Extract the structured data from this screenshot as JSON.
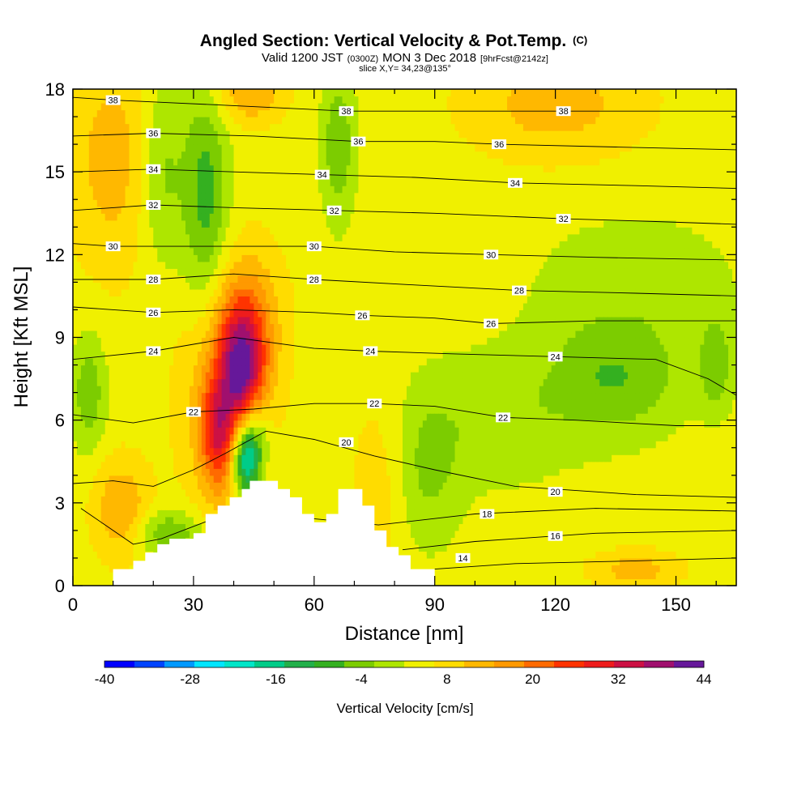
{
  "chart_data": {
    "type": "heatmap",
    "title": "Angled Section: Vertical Velocity & Pot.Temp.",
    "title_tag": "(C)",
    "subtitle_parts": [
      "Valid 1200 JST",
      "(0300Z)",
      "MON 3 Dec 2018",
      "[9hrFcst@2142z]"
    ],
    "slice_text": "slice X,Y= 34,23@135°",
    "xlabel": "Distance [nm]",
    "ylabel": "Height [Kft MSL]",
    "xlim": [
      0,
      165
    ],
    "ylim": [
      0,
      18
    ],
    "x_ticks": [
      0,
      30,
      60,
      90,
      120,
      150
    ],
    "y_ticks": [
      0,
      3,
      6,
      9,
      12,
      15,
      18
    ],
    "colorbar": {
      "label": "Vertical Velocity [cm/s]",
      "min": -40,
      "max": 44,
      "step": 4,
      "tick_labels": [
        -40,
        -28,
        -16,
        -4,
        8,
        20,
        32,
        44
      ],
      "colors": [
        "#0000ff",
        "#0044ff",
        "#0099ff",
        "#00e6ff",
        "#00e6c8",
        "#00cc88",
        "#22b04a",
        "#34b020",
        "#7ccc00",
        "#aee600",
        "#f0f000",
        "#ffdc00",
        "#ffb800",
        "#ff9900",
        "#ff6a00",
        "#ff3300",
        "#ee1c1c",
        "#cc1144",
        "#a0106e",
        "#66189a"
      ]
    },
    "velocity_features": [
      {
        "x": 42,
        "y": 8.0,
        "sx": 4,
        "sy": 1.6,
        "value": 28
      },
      {
        "x": 36,
        "y": 5.5,
        "sx": 3,
        "sy": 1.4,
        "value": 18
      },
      {
        "x": 38,
        "y": 7.0,
        "sx": 8,
        "sy": 3.0,
        "value": 10
      },
      {
        "x": 44,
        "y": 17.9,
        "sx": 6,
        "sy": 0.8,
        "value": 10
      },
      {
        "x": 12,
        "y": 2.8,
        "sx": 5,
        "sy": 1.3,
        "value": 10
      },
      {
        "x": 10,
        "y": 15.5,
        "sx": 8,
        "sy": 3.0,
        "value": 8
      },
      {
        "x": 120,
        "y": 17.5,
        "sx": 16,
        "sy": 1.5,
        "value": 8
      },
      {
        "x": 140,
        "y": 0.6,
        "sx": 8,
        "sy": 0.5,
        "value": 8
      },
      {
        "x": 76,
        "y": 3.5,
        "sx": 5,
        "sy": 2.5,
        "value": 5
      },
      {
        "x": 45,
        "y": 10.0,
        "sx": 6,
        "sy": 1.8,
        "value": 6
      },
      {
        "x": 43,
        "y": 4.5,
        "sx": 2.5,
        "sy": 0.9,
        "value": -24
      },
      {
        "x": 45,
        "y": 5.5,
        "sx": 3,
        "sy": 1.0,
        "value": -12
      },
      {
        "x": 33,
        "y": 14.0,
        "sx": 4,
        "sy": 3.0,
        "value": -12
      },
      {
        "x": 24,
        "y": 1.9,
        "sx": 6,
        "sy": 0.6,
        "value": -10
      },
      {
        "x": 66,
        "y": 16.0,
        "sx": 3,
        "sy": 2.0,
        "value": -9
      },
      {
        "x": 4,
        "y": 7.0,
        "sx": 3,
        "sy": 1.5,
        "value": -9
      },
      {
        "x": 135,
        "y": 7.5,
        "sx": 12,
        "sy": 1.5,
        "value": -9
      },
      {
        "x": 160,
        "y": 8.0,
        "sx": 3,
        "sy": 1.2,
        "value": -8
      },
      {
        "x": 22,
        "y": 15.0,
        "sx": 4,
        "sy": 2.5,
        "value": -8
      },
      {
        "x": 105,
        "y": 6.0,
        "sx": 15,
        "sy": 1.8,
        "value": -5
      },
      {
        "x": 140,
        "y": 11.0,
        "sx": 20,
        "sy": 2.0,
        "value": -4
      },
      {
        "x": 88,
        "y": 4.0,
        "sx": 6,
        "sy": 2.0,
        "value": -6
      }
    ],
    "terrain": [
      [
        0,
        0
      ],
      [
        10,
        0
      ],
      [
        10,
        0.6
      ],
      [
        15,
        0.6
      ],
      [
        15,
        0.9
      ],
      [
        18,
        0.9
      ],
      [
        18,
        1.2
      ],
      [
        21,
        1.2
      ],
      [
        21,
        1.5
      ],
      [
        24,
        1.5
      ],
      [
        24,
        1.7
      ],
      [
        30,
        1.7
      ],
      [
        30,
        1.9
      ],
      [
        33,
        1.9
      ],
      [
        33,
        2.6
      ],
      [
        36,
        2.6
      ],
      [
        36,
        2.9
      ],
      [
        39,
        2.9
      ],
      [
        39,
        3.2
      ],
      [
        42,
        3.2
      ],
      [
        42,
        3.5
      ],
      [
        44,
        3.5
      ],
      [
        44,
        3.8
      ],
      [
        51,
        3.8
      ],
      [
        51,
        3.5
      ],
      [
        54,
        3.5
      ],
      [
        54,
        3.2
      ],
      [
        57,
        3.2
      ],
      [
        57,
        2.6
      ],
      [
        60,
        2.6
      ],
      [
        60,
        2.3
      ],
      [
        63,
        2.3
      ],
      [
        63,
        2.6
      ],
      [
        66,
        2.6
      ],
      [
        66,
        3.5
      ],
      [
        72,
        3.5
      ],
      [
        72,
        2.9
      ],
      [
        75,
        2.9
      ],
      [
        75,
        2.0
      ],
      [
        78,
        2.0
      ],
      [
        78,
        1.4
      ],
      [
        81,
        1.4
      ],
      [
        81,
        1.1
      ],
      [
        84,
        1.1
      ],
      [
        84,
        0.6
      ],
      [
        90,
        0.6
      ],
      [
        90,
        0
      ],
      [
        165,
        0
      ]
    ],
    "theta_contours": [
      {
        "value": 14,
        "label_at": [
          [
            97,
            1.0
          ]
        ],
        "points": [
          [
            90,
            0.6
          ],
          [
            110,
            0.8
          ],
          [
            140,
            0.9
          ],
          [
            165,
            1.0
          ]
        ]
      },
      {
        "value": 16,
        "label_at": [
          [
            120,
            1.8
          ]
        ],
        "points": [
          [
            82,
            1.3
          ],
          [
            100,
            1.6
          ],
          [
            130,
            1.9
          ],
          [
            165,
            2.0
          ]
        ]
      },
      {
        "value": 18,
        "label_at": [
          [
            103,
            2.6
          ]
        ],
        "points": [
          [
            2,
            2.8
          ],
          [
            15,
            1.5
          ],
          [
            22,
            1.7
          ],
          [
            40,
            2.7
          ],
          [
            76,
            2.2
          ],
          [
            100,
            2.6
          ],
          [
            130,
            2.8
          ],
          [
            165,
            2.7
          ]
        ]
      },
      {
        "value": 20,
        "label_at": [
          [
            68,
            5.2
          ],
          [
            120,
            3.4
          ]
        ],
        "points": [
          [
            0,
            3.7
          ],
          [
            10,
            3.8
          ],
          [
            20,
            3.6
          ],
          [
            30,
            4.2
          ],
          [
            38,
            4.8
          ],
          [
            48,
            5.6
          ],
          [
            60,
            5.3
          ],
          [
            75,
            4.7
          ],
          [
            90,
            4.2
          ],
          [
            110,
            3.6
          ],
          [
            140,
            3.3
          ],
          [
            165,
            3.2
          ]
        ]
      },
      {
        "value": 22,
        "label_at": [
          [
            30,
            6.3
          ],
          [
            75,
            6.6
          ],
          [
            107,
            6.1
          ]
        ],
        "points": [
          [
            0,
            6.2
          ],
          [
            15,
            5.9
          ],
          [
            30,
            6.3
          ],
          [
            45,
            6.4
          ],
          [
            60,
            6.6
          ],
          [
            75,
            6.6
          ],
          [
            90,
            6.5
          ],
          [
            107,
            6.1
          ],
          [
            125,
            6.0
          ],
          [
            150,
            5.8
          ],
          [
            165,
            5.8
          ]
        ]
      },
      {
        "value": 24,
        "label_at": [
          [
            20,
            8.5
          ],
          [
            74,
            8.5
          ],
          [
            120,
            8.3
          ]
        ],
        "points": [
          [
            0,
            8.2
          ],
          [
            20,
            8.5
          ],
          [
            40,
            9.0
          ],
          [
            60,
            8.6
          ],
          [
            74,
            8.5
          ],
          [
            95,
            8.4
          ],
          [
            120,
            8.3
          ],
          [
            145,
            8.2
          ],
          [
            158,
            7.5
          ],
          [
            165,
            6.9
          ]
        ]
      },
      {
        "value": 26,
        "label_at": [
          [
            20,
            9.9
          ],
          [
            72,
            9.8
          ],
          [
            104,
            9.5
          ]
        ],
        "points": [
          [
            0,
            10.1
          ],
          [
            20,
            9.9
          ],
          [
            40,
            10.0
          ],
          [
            60,
            9.9
          ],
          [
            72,
            9.8
          ],
          [
            90,
            9.7
          ],
          [
            104,
            9.5
          ],
          [
            130,
            9.6
          ],
          [
            165,
            9.6
          ]
        ]
      },
      {
        "value": 28,
        "label_at": [
          [
            20,
            11.1
          ],
          [
            60,
            11.1
          ],
          [
            111,
            10.7
          ]
        ],
        "points": [
          [
            0,
            11.1
          ],
          [
            20,
            11.1
          ],
          [
            40,
            11.3
          ],
          [
            60,
            11.1
          ],
          [
            85,
            10.9
          ],
          [
            111,
            10.7
          ],
          [
            140,
            10.6
          ],
          [
            165,
            10.5
          ]
        ]
      },
      {
        "value": 30,
        "label_at": [
          [
            10,
            12.3
          ],
          [
            60,
            12.3
          ],
          [
            104,
            12.0
          ]
        ],
        "points": [
          [
            0,
            12.4
          ],
          [
            10,
            12.3
          ],
          [
            35,
            12.3
          ],
          [
            60,
            12.3
          ],
          [
            80,
            12.1
          ],
          [
            104,
            12.0
          ],
          [
            130,
            11.9
          ],
          [
            165,
            11.8
          ]
        ]
      },
      {
        "value": 32,
        "label_at": [
          [
            20,
            13.8
          ],
          [
            65,
            13.6
          ],
          [
            122,
            13.3
          ]
        ],
        "points": [
          [
            0,
            13.6
          ],
          [
            20,
            13.8
          ],
          [
            40,
            13.7
          ],
          [
            65,
            13.6
          ],
          [
            90,
            13.5
          ],
          [
            122,
            13.3
          ],
          [
            145,
            13.2
          ],
          [
            165,
            13.1
          ]
        ]
      },
      {
        "value": 34,
        "label_at": [
          [
            20,
            15.1
          ],
          [
            62,
            14.9
          ],
          [
            110,
            14.6
          ]
        ],
        "points": [
          [
            0,
            15.0
          ],
          [
            20,
            15.1
          ],
          [
            40,
            15.0
          ],
          [
            62,
            14.9
          ],
          [
            85,
            14.8
          ],
          [
            110,
            14.6
          ],
          [
            140,
            14.5
          ],
          [
            165,
            14.4
          ]
        ]
      },
      {
        "value": 36,
        "label_at": [
          [
            20,
            16.4
          ],
          [
            71,
            16.1
          ],
          [
            106,
            16.0
          ]
        ],
        "points": [
          [
            0,
            16.3
          ],
          [
            20,
            16.4
          ],
          [
            45,
            16.3
          ],
          [
            71,
            16.1
          ],
          [
            90,
            16.1
          ],
          [
            106,
            16.0
          ],
          [
            135,
            15.9
          ],
          [
            165,
            15.8
          ]
        ]
      },
      {
        "value": 38,
        "label_at": [
          [
            10,
            17.6
          ],
          [
            68,
            17.2
          ],
          [
            122,
            17.2
          ]
        ],
        "points": [
          [
            0,
            17.7
          ],
          [
            10,
            17.6
          ],
          [
            40,
            17.4
          ],
          [
            68,
            17.2
          ],
          [
            95,
            17.2
          ],
          [
            122,
            17.2
          ],
          [
            145,
            17.2
          ],
          [
            165,
            17.2
          ]
        ]
      }
    ],
    "grid": false,
    "legend": "bottom colorbar"
  }
}
